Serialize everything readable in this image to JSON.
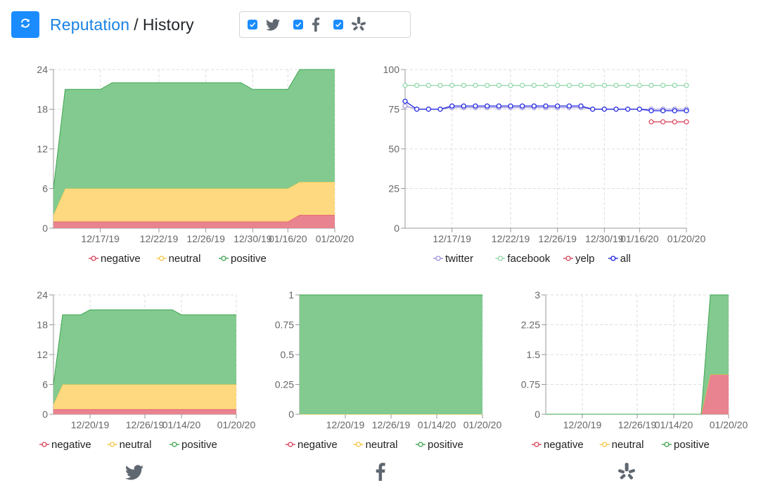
{
  "header": {
    "root_label": "Reputation",
    "separator": "/",
    "current_label": "History"
  },
  "toolbar": {
    "refresh_icon": "refresh-icon",
    "filters": [
      {
        "icon": "twitter-icon",
        "checked": true
      },
      {
        "icon": "facebook-icon",
        "checked": true
      },
      {
        "icon": "yelp-icon",
        "checked": true
      }
    ]
  },
  "colors": {
    "negative": "#e8838f",
    "neutral": "#fed97f",
    "positive": "#82ca8f",
    "twitter": "#9b8fd8",
    "facebook": "#8fd6a8",
    "yelp": "#d9435a",
    "all": "#1a22e0"
  },
  "footer_icons": [
    "twitter-icon",
    "facebook-icon",
    "yelp-icon"
  ],
  "chart_data": [
    {
      "id": "overall-area",
      "type": "area",
      "stacked": true,
      "x": [
        "12/13/19",
        "12/14/19",
        "12/15/19",
        "12/16/19",
        "12/17/19",
        "12/18/19",
        "12/19/19",
        "12/20/19",
        "12/21/19",
        "12/22/19",
        "12/23/19",
        "12/24/19",
        "12/25/19",
        "12/26/19",
        "12/27/19",
        "12/28/19",
        "12/29/19",
        "12/30/19",
        "12/31/19",
        "01/01/20",
        "01/16/20",
        "01/17/20",
        "01/18/20",
        "01/19/20",
        "01/20/20"
      ],
      "xticks": [
        "12/17/19",
        "12/22/19",
        "12/26/19",
        "12/30/19",
        "01/16/20",
        "01/20/20"
      ],
      "ylim": [
        0,
        24
      ],
      "yticks": [
        0,
        6,
        12,
        18,
        24
      ],
      "series": [
        {
          "name": "negative",
          "values": [
            1,
            1,
            1,
            1,
            1,
            1,
            1,
            1,
            1,
            1,
            1,
            1,
            1,
            1,
            1,
            1,
            1,
            1,
            1,
            1,
            1,
            2,
            2,
            2,
            2
          ]
        },
        {
          "name": "neutral",
          "values": [
            1,
            5,
            5,
            5,
            5,
            5,
            5,
            5,
            5,
            5,
            5,
            5,
            5,
            5,
            5,
            5,
            5,
            5,
            5,
            5,
            5,
            5,
            5,
            5,
            5
          ]
        },
        {
          "name": "positive",
          "values": [
            4,
            15,
            15,
            15,
            15,
            16,
            16,
            16,
            16,
            16,
            16,
            16,
            16,
            16,
            16,
            16,
            16,
            15,
            15,
            15,
            15,
            17,
            17,
            17,
            17
          ]
        }
      ],
      "legend": "bottom",
      "grid": true
    },
    {
      "id": "score-lines",
      "type": "line",
      "x": [
        "12/13/19",
        "12/14/19",
        "12/15/19",
        "12/16/19",
        "12/17/19",
        "12/18/19",
        "12/19/19",
        "12/20/19",
        "12/21/19",
        "12/22/19",
        "12/23/19",
        "12/24/19",
        "12/25/19",
        "12/26/19",
        "12/27/19",
        "12/28/19",
        "12/29/19",
        "12/30/19",
        "12/31/19",
        "01/01/20",
        "01/16/20",
        "01/17/20",
        "01/18/20",
        "01/19/20",
        "01/20/20"
      ],
      "xticks": [
        "12/17/19",
        "12/22/19",
        "12/26/19",
        "12/30/19",
        "01/16/20",
        "01/20/20"
      ],
      "ylim": [
        0,
        100
      ],
      "yticks": [
        0,
        25,
        50,
        75,
        100
      ],
      "series": [
        {
          "name": "twitter",
          "values": [
            77,
            75,
            75,
            75,
            76,
            76,
            76,
            76,
            76,
            76,
            76,
            76,
            76,
            76,
            76,
            76,
            75,
            75,
            75,
            75,
            75,
            75,
            75,
            75,
            75
          ]
        },
        {
          "name": "facebook",
          "values": [
            90,
            90,
            90,
            90,
            90,
            90,
            90,
            90,
            90,
            90,
            90,
            90,
            90,
            90,
            90,
            90,
            90,
            90,
            90,
            90,
            90,
            90,
            90,
            90,
            90
          ]
        },
        {
          "name": "yelp",
          "values": [
            null,
            null,
            null,
            null,
            null,
            null,
            null,
            null,
            null,
            null,
            null,
            null,
            null,
            null,
            null,
            null,
            null,
            null,
            null,
            null,
            null,
            67,
            67,
            67,
            67
          ]
        },
        {
          "name": "all",
          "values": [
            80,
            75,
            75,
            75,
            77,
            77,
            77,
            77,
            77,
            77,
            77,
            77,
            77,
            77,
            77,
            77,
            75,
            75,
            75,
            75,
            75,
            74,
            74,
            74,
            74
          ]
        }
      ],
      "legend": "bottom",
      "grid": true
    },
    {
      "id": "twitter-area",
      "type": "area",
      "stacked": true,
      "x": [
        "12/16/19",
        "12/17/19",
        "12/18/19",
        "12/19/19",
        "12/20/19",
        "12/21/19",
        "12/22/19",
        "12/23/19",
        "12/24/19",
        "12/25/19",
        "12/26/19",
        "12/27/19",
        "12/28/19",
        "12/29/19",
        "01/14/20",
        "01/15/20",
        "01/16/20",
        "01/17/20",
        "01/18/20",
        "01/19/20",
        "01/20/20"
      ],
      "xticks": [
        "12/20/19",
        "12/26/19",
        "01/14/20",
        "01/20/20"
      ],
      "ylim": [
        0,
        24
      ],
      "yticks": [
        0,
        6,
        12,
        18,
        24
      ],
      "series": [
        {
          "name": "negative",
          "values": [
            1,
            1,
            1,
            1,
            1,
            1,
            1,
            1,
            1,
            1,
            1,
            1,
            1,
            1,
            1,
            1,
            1,
            1,
            1,
            1,
            1
          ]
        },
        {
          "name": "neutral",
          "values": [
            1,
            5,
            5,
            5,
            5,
            5,
            5,
            5,
            5,
            5,
            5,
            5,
            5,
            5,
            5,
            5,
            5,
            5,
            5,
            5,
            5
          ]
        },
        {
          "name": "positive",
          "values": [
            4,
            14,
            14,
            14,
            15,
            15,
            15,
            15,
            15,
            15,
            15,
            15,
            15,
            15,
            14,
            14,
            14,
            14,
            14,
            14,
            14
          ]
        }
      ],
      "legend": "bottom",
      "grid": true
    },
    {
      "id": "facebook-area",
      "type": "area",
      "stacked": true,
      "x": [
        "12/16/19",
        "12/20/19",
        "12/26/19",
        "01/14/20",
        "01/20/20"
      ],
      "xticks": [
        "12/20/19",
        "12/26/19",
        "01/14/20",
        "01/20/20"
      ],
      "ylim": [
        0,
        1
      ],
      "yticks": [
        0,
        0.25,
        0.5,
        0.75,
        1
      ],
      "series": [
        {
          "name": "negative",
          "values": [
            0,
            0,
            0,
            0,
            0
          ]
        },
        {
          "name": "neutral",
          "values": [
            0,
            0,
            0,
            0,
            0
          ]
        },
        {
          "name": "positive",
          "values": [
            1,
            1,
            1,
            1,
            1
          ]
        }
      ],
      "legend": "bottom",
      "grid": true
    },
    {
      "id": "yelp-area",
      "type": "area",
      "stacked": true,
      "x": [
        "12/16/19",
        "12/17/19",
        "12/18/19",
        "12/19/19",
        "12/20/19",
        "12/21/19",
        "12/22/19",
        "12/23/19",
        "12/24/19",
        "12/25/19",
        "12/26/19",
        "12/27/19",
        "12/28/19",
        "12/29/19",
        "01/14/20",
        "01/15/20",
        "01/16/20",
        "01/17/20",
        "01/18/20",
        "01/19/20",
        "01/20/20"
      ],
      "xticks": [
        "12/20/19",
        "12/26/19",
        "01/14/20",
        "01/20/20"
      ],
      "ylim": [
        0,
        3
      ],
      "yticks": [
        0,
        0.75,
        1.5,
        2.25,
        3
      ],
      "series": [
        {
          "name": "negative",
          "values": [
            0,
            0,
            0,
            0,
            0,
            0,
            0,
            0,
            0,
            0,
            0,
            0,
            0,
            0,
            0,
            0,
            0,
            0,
            1,
            1,
            1
          ]
        },
        {
          "name": "neutral",
          "values": [
            0,
            0,
            0,
            0,
            0,
            0,
            0,
            0,
            0,
            0,
            0,
            0,
            0,
            0,
            0,
            0,
            0,
            0,
            0,
            0,
            0
          ]
        },
        {
          "name": "positive",
          "values": [
            0,
            0,
            0,
            0,
            0,
            0,
            0,
            0,
            0,
            0,
            0,
            0,
            0,
            0,
            0,
            0,
            0,
            0,
            2,
            2,
            2
          ]
        }
      ],
      "legend": "bottom",
      "grid": true
    }
  ]
}
